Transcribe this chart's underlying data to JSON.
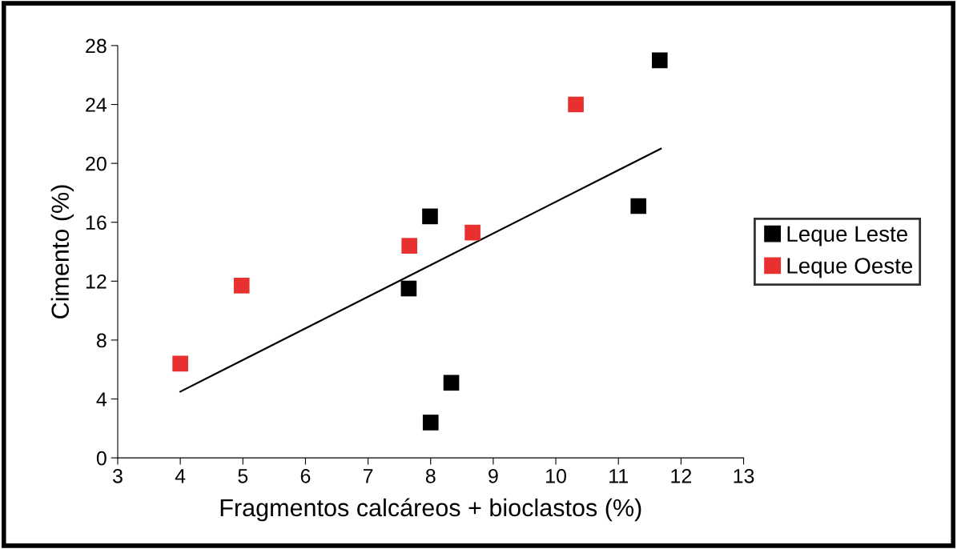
{
  "chart_data": {
    "type": "scatter",
    "xlabel": "Fragmentos calcáreos + bioclastos (%)",
    "ylabel": "Cimento (%)",
    "xlim": [
      3,
      13
    ],
    "xticks": [
      3,
      4,
      5,
      6,
      7,
      8,
      9,
      10,
      11,
      12,
      13
    ],
    "ylim": [
      0,
      28
    ],
    "yticks": [
      0,
      4,
      8,
      12,
      16,
      20,
      24,
      28
    ],
    "grid": false,
    "legend": "right",
    "series": [
      {
        "name": "Leque Leste",
        "marker": "square",
        "color": "#000000",
        "x": [
          11.66,
          7.99,
          7.65,
          11.32,
          8.33,
          8.0
        ],
        "values": [
          27.0,
          16.4,
          11.5,
          17.1,
          5.1,
          2.4
        ]
      },
      {
        "name": "Leque Oeste",
        "marker": "square",
        "color": "#e8312f",
        "x": [
          4.0,
          4.98,
          7.66,
          8.67,
          10.32
        ],
        "values": [
          6.4,
          11.7,
          14.4,
          15.3,
          24.0
        ]
      },
      {
        "type": "line",
        "marker": "none",
        "color": "#000000",
        "x": [
          4.0,
          11.68
        ],
        "values": [
          4.5,
          21.0
        ]
      }
    ]
  }
}
